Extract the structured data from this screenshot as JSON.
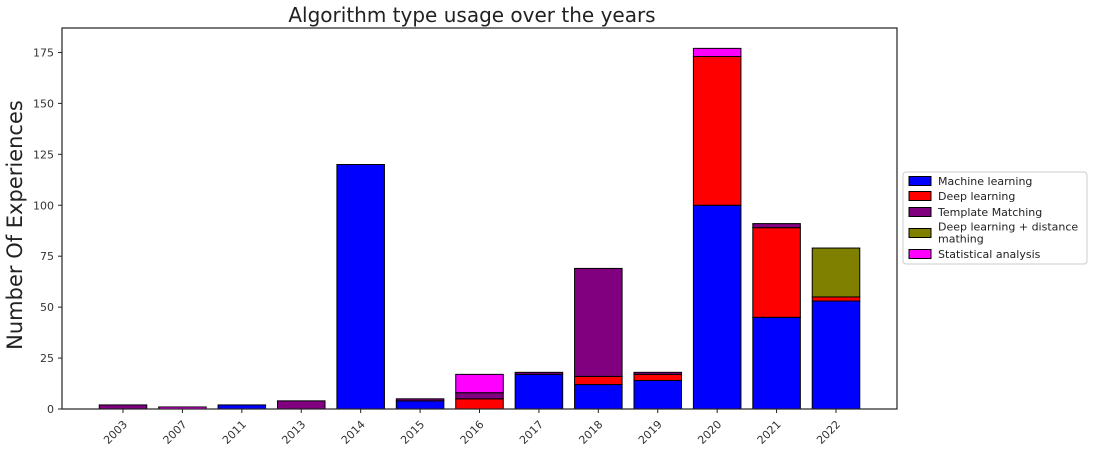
{
  "chart_data": {
    "type": "bar",
    "stacked": true,
    "title": "Algorithm type usage over the years",
    "xlabel": "",
    "ylabel": "Number Of Experiences",
    "ylim": [
      0,
      187
    ],
    "yticks": [
      0,
      25,
      50,
      75,
      100,
      125,
      150,
      175
    ],
    "grid": false,
    "legend_position": "right",
    "categories": [
      "2003",
      "2007",
      "2011",
      "2013",
      "2014",
      "2015",
      "2016",
      "2017",
      "2018",
      "2019",
      "2020",
      "2021",
      "2022"
    ],
    "series": [
      {
        "name": "Machine learning",
        "color": "#0000ff",
        "values": [
          0,
          0,
          2,
          0,
          120,
          4,
          0,
          17,
          12,
          14,
          100,
          45,
          53
        ]
      },
      {
        "name": "Deep learning",
        "color": "#ff0000",
        "values": [
          0,
          0,
          0,
          0,
          0,
          0,
          5,
          0,
          4,
          3,
          73,
          44,
          2
        ]
      },
      {
        "name": "Template Matching",
        "color": "#800080",
        "values": [
          2,
          0,
          0,
          4,
          0,
          1,
          3,
          1,
          53,
          1,
          0,
          2,
          0
        ]
      },
      {
        "name": "Deep learning + distance mathing",
        "color": "#808000",
        "values": [
          0,
          0,
          0,
          0,
          0,
          0,
          0,
          0,
          0,
          0,
          0,
          0,
          24
        ]
      },
      {
        "name": "Statistical analysis",
        "color": "#ff00ff",
        "values": [
          0,
          1,
          0,
          0,
          0,
          0,
          9,
          0,
          0,
          0,
          4,
          0,
          0
        ]
      }
    ],
    "legend": {
      "entries": [
        {
          "lines": [
            "Machine learning"
          ]
        },
        {
          "lines": [
            "Deep learning"
          ]
        },
        {
          "lines": [
            "Template Matching"
          ]
        },
        {
          "lines": [
            "Deep learning + distance",
            "mathing"
          ]
        },
        {
          "lines": [
            "Statistical analysis"
          ]
        }
      ]
    }
  }
}
